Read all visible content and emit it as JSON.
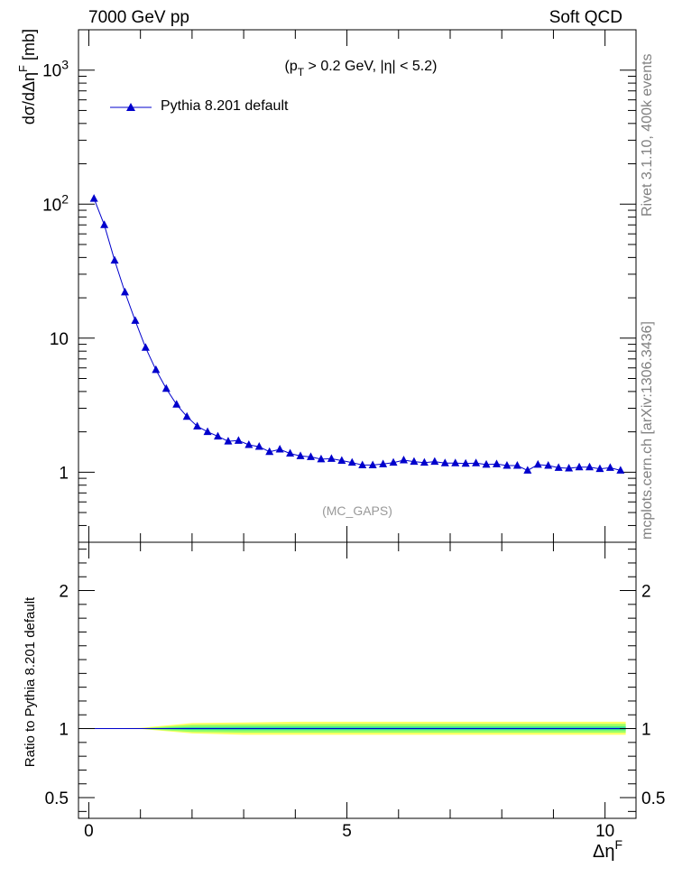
{
  "header": {
    "left": "7000 GeV pp",
    "right": "Soft QCD"
  },
  "side_text": {
    "rivet": "Rivet 3.1.10, 400k events",
    "mcplots": "mcplots.cern.ch [arXiv:1306.3436]"
  },
  "chart_data": [
    {
      "type": "line",
      "cut_label": "(p_T > 0.2 GeV, |η| < 5.2)",
      "analysis_label": "(MC_GAPS)",
      "ylabel": "dσ/dΔη^F [mb]",
      "xlim": [
        -0.2,
        10.6
      ],
      "ylim": [
        0.3,
        2000
      ],
      "yscale": "log",
      "yticks": [
        {
          "v": 1,
          "label": "1"
        },
        {
          "v": 10,
          "label": "10"
        },
        {
          "v": 100,
          "label": "10^2"
        },
        {
          "v": 1000,
          "label": "10^3"
        }
      ],
      "legend_position": "top-left",
      "series": [
        {
          "name": "Pythia 8.201 default",
          "color": "#0000cc",
          "x": [
            0.1,
            0.3,
            0.5,
            0.7,
            0.9,
            1.1,
            1.3,
            1.5,
            1.7,
            1.9,
            2.1,
            2.3,
            2.5,
            2.7,
            2.9,
            3.1,
            3.3,
            3.5,
            3.7,
            3.9,
            4.1,
            4.3,
            4.5,
            4.7,
            4.9,
            5.1,
            5.3,
            5.5,
            5.7,
            5.9,
            6.1,
            6.3,
            6.5,
            6.7,
            6.9,
            7.1,
            7.3,
            7.5,
            7.7,
            7.9,
            8.1,
            8.3,
            8.5,
            8.7,
            8.9,
            9.1,
            9.3,
            9.5,
            9.7,
            9.9,
            10.1,
            10.3
          ],
          "y": [
            110,
            70,
            38,
            22,
            13.5,
            8.5,
            5.8,
            4.2,
            3.2,
            2.6,
            2.2,
            2.0,
            1.85,
            1.7,
            1.72,
            1.6,
            1.55,
            1.42,
            1.48,
            1.38,
            1.32,
            1.3,
            1.25,
            1.26,
            1.22,
            1.18,
            1.13,
            1.13,
            1.15,
            1.18,
            1.23,
            1.2,
            1.18,
            1.2,
            1.17,
            1.17,
            1.16,
            1.17,
            1.14,
            1.15,
            1.12,
            1.12,
            1.03,
            1.14,
            1.12,
            1.08,
            1.07,
            1.09,
            1.09,
            1.06,
            1.08,
            1.03
          ]
        }
      ]
    },
    {
      "type": "area",
      "ylabel": "Ratio to Pythia 8.201 default",
      "xlabel": "Δη^F",
      "xlim": [
        -0.2,
        10.6
      ],
      "ylim": [
        0.35,
        2.35
      ],
      "xticks": [
        0,
        5,
        10
      ],
      "yticks": [
        0.5,
        1,
        2
      ],
      "reference": 1,
      "bands": [
        {
          "name": "outer",
          "color": "#ffff66",
          "x": [
            0,
            1,
            2,
            3,
            4,
            5,
            6,
            7,
            8,
            9,
            10,
            10.4
          ],
          "lo": [
            1,
            0.998,
            0.965,
            0.955,
            0.955,
            0.955,
            0.955,
            0.955,
            0.955,
            0.955,
            0.955,
            0.955
          ],
          "hi": [
            1,
            1.005,
            1.04,
            1.045,
            1.05,
            1.05,
            1.05,
            1.05,
            1.05,
            1.05,
            1.05,
            1.05
          ]
        },
        {
          "name": "mid",
          "color": "#99ff66",
          "x": [
            0,
            1,
            2,
            3,
            4,
            5,
            6,
            7,
            8,
            9,
            10,
            10.4
          ],
          "lo": [
            1,
            0.999,
            0.975,
            0.97,
            0.97,
            0.97,
            0.97,
            0.97,
            0.97,
            0.97,
            0.97,
            0.97
          ],
          "hi": [
            1,
            1.002,
            1.028,
            1.032,
            1.033,
            1.035,
            1.035,
            1.035,
            1.035,
            1.035,
            1.035,
            1.035
          ]
        },
        {
          "name": "inner",
          "color": "#33dd99",
          "x": [
            0,
            1,
            2,
            3,
            4,
            5,
            6,
            7,
            8,
            9,
            10,
            10.4
          ],
          "lo": [
            1,
            1,
            0.99,
            0.988,
            0.988,
            0.988,
            0.988,
            0.988,
            0.988,
            0.988,
            0.988,
            0.988
          ],
          "hi": [
            1,
            1,
            1.012,
            1.014,
            1.015,
            1.015,
            1.015,
            1.015,
            1.015,
            1.015,
            1.015,
            1.015
          ]
        }
      ]
    }
  ]
}
